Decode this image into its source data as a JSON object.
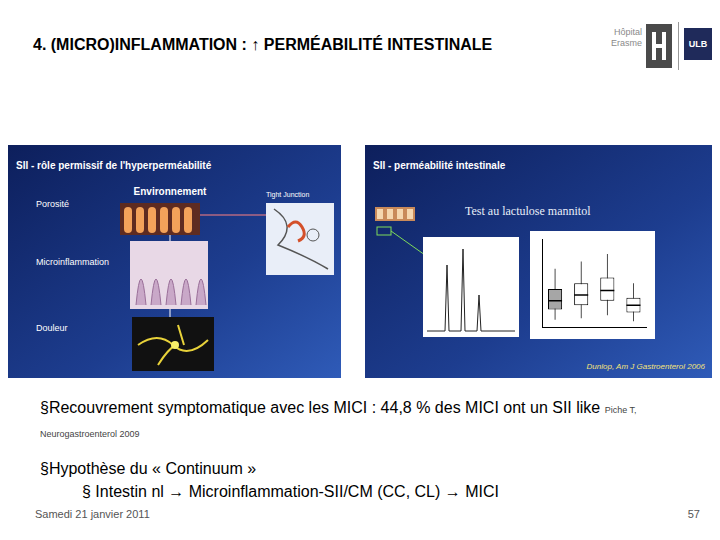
{
  "header": {
    "title": "4. (MICRO)INFLAMMATION : ↑ PERMÉABILITÉ INTESTINALE",
    "logo": [
      "Hôpital",
      "Erasme",
      "ULB"
    ]
  },
  "panels": [
    {
      "title": "SII - rôle permissif de l'hyperperméabilité",
      "center_label": "Environnement",
      "side_label": "Tight Junction",
      "rows": [
        "Porosité",
        "Microinflammation",
        "Douleur"
      ]
    },
    {
      "title": "SII - perméabilité intestinale",
      "subtitle": "Test au lactulose mannitol",
      "source": "Dunlop, Am J Gastroenterol 2006"
    }
  ],
  "bullets": [
    {
      "text": "§Recouvrement symptomatique avec les MICI : 44,8 % des MICI ont un SII like",
      "ref": "Piche T, Neurogastroenterol 2009"
    },
    {
      "text": "§Hypothèse du « Continuum »",
      "sub": "§ Intestin nl → Microinflammation-SII/CM (CC, CL) → MICI"
    }
  ],
  "footer": {
    "date": "Samedi 21 janvier 2011",
    "page": "57"
  },
  "chart_data": {
    "type": "boxplot",
    "categories": [
      null,
      null,
      null,
      null
    ],
    "boxes": [
      {
        "min": 0.005,
        "q1": 0.012,
        "median": 0.018,
        "q3": 0.026,
        "max": 0.04
      },
      {
        "min": 0.006,
        "q1": 0.015,
        "median": 0.022,
        "q3": 0.03,
        "max": 0.045
      },
      {
        "min": 0.008,
        "q1": 0.018,
        "median": 0.025,
        "q3": 0.034,
        "max": 0.05
      },
      {
        "min": 0.004,
        "q1": 0.01,
        "median": 0.015,
        "q3": 0.02,
        "max": 0.03
      }
    ],
    "colors": [
      "#a6a6a6",
      "#ffffff",
      "#ffffff",
      "#ffffff"
    ],
    "ylim": [
      0,
      0.06
    ],
    "yticks": [
      0,
      0.02,
      0.04,
      0.06
    ],
    "grid": false,
    "tick_labels": false
  }
}
